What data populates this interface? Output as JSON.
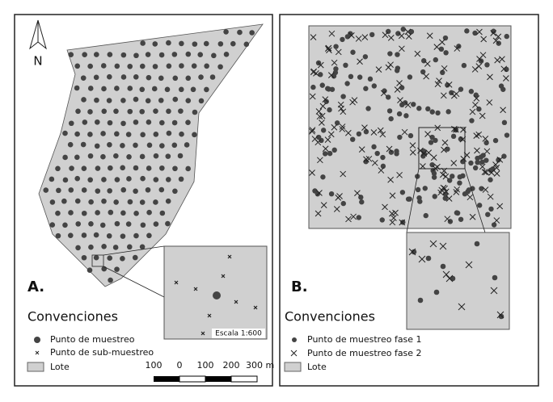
{
  "panel_a": {
    "north": "N",
    "label": "A.",
    "legend_title": "Convenciones",
    "legend": [
      "Punto de muestreo",
      "Punto de sub-muestreo",
      "Lote"
    ],
    "scale_text": "Escala 1:600",
    "scale_bar": [
      "100",
      "0",
      "100",
      "200",
      "300 m"
    ]
  },
  "panel_b": {
    "label": "B.",
    "legend_title": "Convenciones",
    "legend": [
      "Punto de muestreo fase 1",
      "Punto de muestreo fase 2",
      "Lote"
    ]
  }
}
